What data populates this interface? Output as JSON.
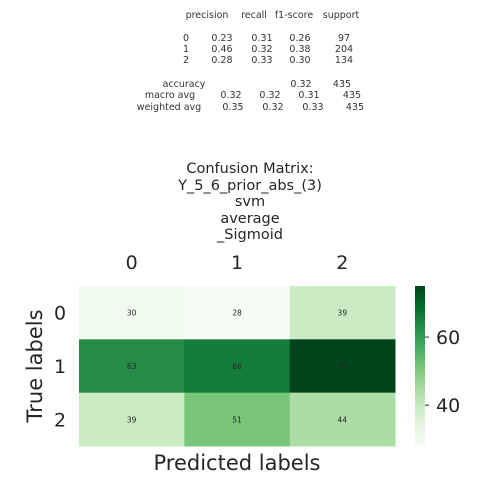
{
  "report": {
    "header": [
      "precision",
      "recall",
      "f1-score",
      "support"
    ],
    "rows": [
      {
        "label": "0",
        "values": [
          "0.23",
          "0.31",
          "0.26",
          "97"
        ]
      },
      {
        "label": "1",
        "values": [
          "0.46",
          "0.32",
          "0.38",
          "204"
        ]
      },
      {
        "label": "2",
        "values": [
          "0.28",
          "0.33",
          "0.30",
          "134"
        ]
      }
    ],
    "accuracy": {
      "label": "accuracy",
      "values": [
        "0.32",
        "435"
      ]
    },
    "macro": {
      "label": "macro avg",
      "values": [
        "0.32",
        "0.32",
        "0.31",
        "435"
      ]
    },
    "weighted": {
      "label": "weighted avg",
      "values": [
        "0.35",
        "0.32",
        "0.33",
        "435"
      ]
    }
  },
  "chart_data": {
    "type": "heatmap",
    "title_lines": [
      "Confusion Matrix:",
      "Y_5_6_prior_abs_(3)",
      "svm",
      "average",
      "_Sigmoid"
    ],
    "xlabel": "Predicted labels",
    "ylabel": "True labels",
    "x_categories": [
      "0",
      "1",
      "2"
    ],
    "y_categories": [
      "0",
      "1",
      "2"
    ],
    "values": [
      [
        30,
        28,
        39
      ],
      [
        63,
        66,
        75
      ],
      [
        39,
        51,
        44
      ]
    ],
    "color_range": [
      28,
      75
    ],
    "colormap": "Greens",
    "colorbar_ticks": [
      "40",
      "60"
    ],
    "colorbar_tick_values": [
      40,
      60
    ]
  }
}
